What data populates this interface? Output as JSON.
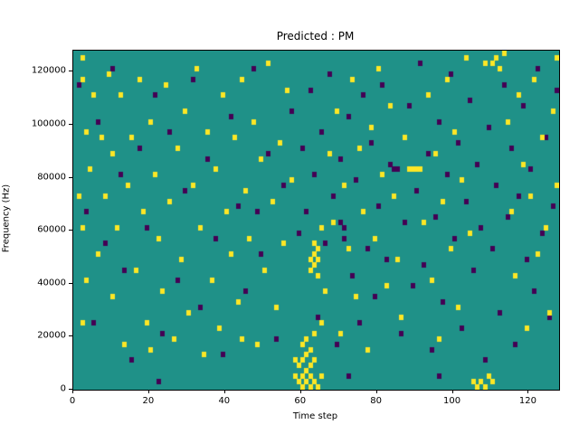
{
  "chart_data": {
    "type": "heatmap",
    "title": "Predicted : PM",
    "xlabel": "Time step",
    "ylabel": "Frequency (Hz)",
    "xlim": [
      0,
      128
    ],
    "ylim": [
      0,
      128000
    ],
    "xticks": [
      0,
      20,
      40,
      60,
      80,
      100,
      120
    ],
    "yticks": [
      0,
      20000,
      40000,
      60000,
      80000,
      100000,
      120000
    ],
    "grid_size": [
      128,
      64
    ],
    "bin_height_hz": 2000,
    "legend": "none",
    "grid": false,
    "colors": {
      "background_class": "#1f9188",
      "high_class": "#fde725",
      "low_class": "#440154",
      "axes_text": "#000000"
    },
    "yellow_cells": [
      [
        2,
        62
      ],
      [
        2,
        58
      ],
      [
        3,
        48
      ],
      [
        1,
        36
      ],
      [
        2,
        30
      ],
      [
        3,
        20
      ],
      [
        2,
        12
      ],
      [
        4,
        41
      ],
      [
        5,
        55
      ],
      [
        6,
        25
      ],
      [
        7,
        47
      ],
      [
        8,
        36
      ],
      [
        9,
        59
      ],
      [
        10,
        44
      ],
      [
        10,
        17
      ],
      [
        11,
        30
      ],
      [
        12,
        55
      ],
      [
        13,
        8
      ],
      [
        14,
        38
      ],
      [
        15,
        47
      ],
      [
        16,
        22
      ],
      [
        17,
        58
      ],
      [
        18,
        33
      ],
      [
        19,
        12
      ],
      [
        20,
        50
      ],
      [
        21,
        40
      ],
      [
        22,
        28
      ],
      [
        23,
        18
      ],
      [
        24,
        57
      ],
      [
        25,
        35
      ],
      [
        26,
        9
      ],
      [
        27,
        45
      ],
      [
        28,
        24
      ],
      [
        29,
        52
      ],
      [
        30,
        14
      ],
      [
        31,
        38
      ],
      [
        32,
        60
      ],
      [
        33,
        30
      ],
      [
        34,
        6
      ],
      [
        35,
        48
      ],
      [
        36,
        20
      ],
      [
        37,
        41
      ],
      [
        38,
        11
      ],
      [
        39,
        55
      ],
      [
        40,
        33
      ],
      [
        41,
        25
      ],
      [
        42,
        47
      ],
      [
        43,
        16
      ],
      [
        44,
        58
      ],
      [
        45,
        37
      ],
      [
        46,
        28
      ],
      [
        47,
        50
      ],
      [
        48,
        8
      ],
      [
        49,
        43
      ],
      [
        50,
        22
      ],
      [
        51,
        61
      ],
      [
        52,
        35
      ],
      [
        53,
        15
      ],
      [
        54,
        46
      ],
      [
        55,
        27
      ],
      [
        56,
        56
      ],
      [
        57,
        39
      ],
      [
        58,
        5
      ],
      [
        58,
        2
      ],
      [
        59,
        1
      ],
      [
        59,
        4
      ],
      [
        60,
        0
      ],
      [
        60,
        2
      ],
      [
        60,
        5
      ],
      [
        60,
        8
      ],
      [
        61,
        1
      ],
      [
        61,
        3
      ],
      [
        61,
        6
      ],
      [
        61,
        9
      ],
      [
        62,
        0
      ],
      [
        62,
        2
      ],
      [
        62,
        4
      ],
      [
        62,
        7
      ],
      [
        62,
        22
      ],
      [
        62,
        24
      ],
      [
        63,
        1
      ],
      [
        63,
        5
      ],
      [
        63,
        23
      ],
      [
        63,
        25
      ],
      [
        63,
        27
      ],
      [
        64,
        21
      ],
      [
        64,
        24
      ],
      [
        64,
        26
      ],
      [
        65,
        12
      ],
      [
        65,
        30
      ],
      [
        66,
        18
      ],
      [
        67,
        44
      ],
      [
        68,
        31
      ],
      [
        69,
        52
      ],
      [
        70,
        10
      ],
      [
        71,
        38
      ],
      [
        72,
        26
      ],
      [
        73,
        58
      ],
      [
        74,
        17
      ],
      [
        75,
        45
      ],
      [
        76,
        33
      ],
      [
        77,
        7
      ],
      [
        78,
        49
      ],
      [
        79,
        28
      ],
      [
        80,
        60
      ],
      [
        81,
        40
      ],
      [
        82,
        19
      ],
      [
        83,
        53
      ],
      [
        84,
        36
      ],
      [
        85,
        24
      ],
      [
        86,
        13
      ],
      [
        87,
        47
      ],
      [
        88,
        41
      ],
      [
        89,
        41
      ],
      [
        90,
        41
      ],
      [
        91,
        41
      ],
      [
        92,
        31
      ],
      [
        93,
        55
      ],
      [
        94,
        20
      ],
      [
        95,
        44
      ],
      [
        96,
        9
      ],
      [
        97,
        35
      ],
      [
        98,
        58
      ],
      [
        99,
        26
      ],
      [
        100,
        48
      ],
      [
        101,
        15
      ],
      [
        102,
        39
      ],
      [
        103,
        62
      ],
      [
        104,
        29
      ],
      [
        105,
        1
      ],
      [
        106,
        0
      ],
      [
        107,
        1
      ],
      [
        108,
        0
      ],
      [
        109,
        2
      ],
      [
        110,
        1
      ],
      [
        110,
        61
      ],
      [
        111,
        62
      ],
      [
        112,
        60
      ],
      [
        113,
        63
      ],
      [
        114,
        50
      ],
      [
        115,
        33
      ],
      [
        116,
        21
      ],
      [
        117,
        55
      ],
      [
        118,
        42
      ],
      [
        119,
        11
      ],
      [
        120,
        36
      ],
      [
        121,
        58
      ],
      [
        122,
        25
      ],
      [
        123,
        47
      ],
      [
        124,
        30
      ],
      [
        125,
        14
      ],
      [
        126,
        52
      ],
      [
        127,
        62
      ],
      [
        127,
        38
      ],
      [
        63,
        10
      ],
      [
        64,
        0
      ],
      [
        65,
        2
      ],
      [
        108,
        61
      ],
      [
        44,
        9
      ],
      [
        20,
        7
      ]
    ],
    "purple_cells": [
      [
        1,
        57
      ],
      [
        3,
        33
      ],
      [
        5,
        12
      ],
      [
        6,
        50
      ],
      [
        8,
        27
      ],
      [
        10,
        60
      ],
      [
        12,
        40
      ],
      [
        13,
        22
      ],
      [
        15,
        5
      ],
      [
        17,
        45
      ],
      [
        19,
        30
      ],
      [
        21,
        55
      ],
      [
        23,
        10
      ],
      [
        25,
        48
      ],
      [
        27,
        20
      ],
      [
        29,
        37
      ],
      [
        31,
        58
      ],
      [
        33,
        15
      ],
      [
        35,
        43
      ],
      [
        37,
        28
      ],
      [
        39,
        6
      ],
      [
        41,
        51
      ],
      [
        43,
        34
      ],
      [
        45,
        18
      ],
      [
        47,
        60
      ],
      [
        49,
        25
      ],
      [
        51,
        44
      ],
      [
        53,
        9
      ],
      [
        55,
        38
      ],
      [
        57,
        52
      ],
      [
        59,
        29
      ],
      [
        60,
        45
      ],
      [
        61,
        33
      ],
      [
        62,
        56
      ],
      [
        63,
        40
      ],
      [
        64,
        13
      ],
      [
        65,
        48
      ],
      [
        66,
        27
      ],
      [
        67,
        59
      ],
      [
        68,
        36
      ],
      [
        69,
        8
      ],
      [
        70,
        43
      ],
      [
        71,
        30
      ],
      [
        71,
        28
      ],
      [
        72,
        51
      ],
      [
        73,
        21
      ],
      [
        74,
        39
      ],
      [
        75,
        12
      ],
      [
        76,
        55
      ],
      [
        77,
        26
      ],
      [
        78,
        46
      ],
      [
        79,
        17
      ],
      [
        80,
        34
      ],
      [
        81,
        57
      ],
      [
        82,
        24
      ],
      [
        83,
        42
      ],
      [
        84,
        41
      ],
      [
        85,
        41
      ],
      [
        86,
        10
      ],
      [
        87,
        31
      ],
      [
        88,
        53
      ],
      [
        89,
        19
      ],
      [
        90,
        37
      ],
      [
        91,
        61
      ],
      [
        92,
        23
      ],
      [
        93,
        44
      ],
      [
        94,
        7
      ],
      [
        95,
        32
      ],
      [
        96,
        50
      ],
      [
        97,
        16
      ],
      [
        98,
        40
      ],
      [
        99,
        59
      ],
      [
        100,
        28
      ],
      [
        101,
        46
      ],
      [
        102,
        11
      ],
      [
        103,
        35
      ],
      [
        104,
        54
      ],
      [
        105,
        22
      ],
      [
        106,
        42
      ],
      [
        107,
        30
      ],
      [
        108,
        5
      ],
      [
        109,
        49
      ],
      [
        110,
        26
      ],
      [
        111,
        38
      ],
      [
        112,
        14
      ],
      [
        113,
        57
      ],
      [
        114,
        32
      ],
      [
        115,
        45
      ],
      [
        116,
        8
      ],
      [
        117,
        36
      ],
      [
        118,
        53
      ],
      [
        119,
        24
      ],
      [
        120,
        41
      ],
      [
        121,
        18
      ],
      [
        122,
        60
      ],
      [
        123,
        29
      ],
      [
        124,
        47
      ],
      [
        125,
        13
      ],
      [
        126,
        34
      ],
      [
        127,
        56
      ],
      [
        70,
        31
      ],
      [
        72,
        2
      ],
      [
        96,
        2
      ],
      [
        22,
        1
      ],
      [
        48,
        33
      ]
    ]
  }
}
